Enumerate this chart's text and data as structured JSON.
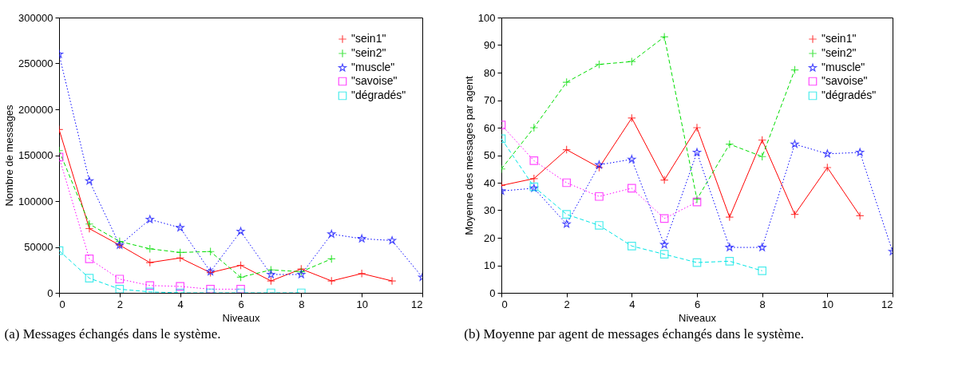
{
  "chart_data": [
    {
      "type": "line",
      "xlabel": "Niveaux",
      "ylabel": "Nombre de messages",
      "x": [
        0,
        1,
        2,
        3,
        4,
        5,
        6,
        7,
        8,
        9,
        10,
        11,
        12
      ],
      "xlim": [
        0,
        12
      ],
      "xticks": [
        0,
        2,
        4,
        6,
        8,
        10,
        12
      ],
      "ylim": [
        0,
        300000
      ],
      "yticks": [
        0,
        50000,
        100000,
        150000,
        200000,
        250000,
        300000
      ],
      "grid": false,
      "legend": "top right",
      "annotations": [
        "(a) Messages échangés dans le système."
      ],
      "series": [
        {
          "name": "\"sein1\"",
          "color": "#ff0000",
          "marker": "cross",
          "line_style": "solid",
          "values": [
            178000,
            70000,
            52000,
            33000,
            38000,
            22000,
            30000,
            13000,
            26000,
            13000,
            21000,
            13000,
            null
          ]
        },
        {
          "name": "\"sein2\"",
          "color": "#00dd00",
          "marker": "cross",
          "line_style": "dashed",
          "values": [
            155000,
            75000,
            56000,
            48000,
            44000,
            45000,
            17000,
            25000,
            23000,
            37000,
            null,
            null,
            null
          ]
        },
        {
          "name": "\"muscle\"",
          "color": "#0000ff",
          "marker": "star",
          "line_style": "dotted",
          "values": [
            260000,
            122000,
            52000,
            80000,
            71000,
            23000,
            67000,
            20000,
            20000,
            64000,
            59000,
            57000,
            17000
          ]
        },
        {
          "name": "\"savoise\"",
          "color": "#ff00ff",
          "marker": "square",
          "line_style": "dotted",
          "values": [
            148000,
            37000,
            15000,
            8000,
            7000,
            4000,
            4000,
            null,
            null,
            null,
            null,
            null,
            null
          ]
        },
        {
          "name": "\"dégradés\"",
          "color": "#00e5e5",
          "marker": "square",
          "line_style": "dashed",
          "values": [
            46000,
            16000,
            4000,
            1000,
            0,
            0,
            0,
            0,
            0,
            null,
            null,
            null,
            null
          ]
        }
      ]
    },
    {
      "type": "line",
      "xlabel": "Niveaux",
      "ylabel": "Moyenne des messages par agent",
      "x": [
        0,
        1,
        2,
        3,
        4,
        5,
        6,
        7,
        8,
        9,
        10,
        11,
        12
      ],
      "xlim": [
        0,
        12
      ],
      "xticks": [
        0,
        2,
        4,
        6,
        8,
        10,
        12
      ],
      "ylim": [
        0,
        100
      ],
      "yticks": [
        0,
        10,
        20,
        30,
        40,
        50,
        60,
        70,
        80,
        90,
        100
      ],
      "grid": false,
      "legend": "top right",
      "annotations": [
        "(b) Moyenne par agent de messages échangés dans le système."
      ],
      "series": [
        {
          "name": "\"sein1\"",
          "color": "#ff0000",
          "marker": "cross",
          "line_style": "solid",
          "values": [
            39,
            41.5,
            52,
            45.5,
            63.5,
            41,
            60,
            27.5,
            55.5,
            28.5,
            45.5,
            28,
            null
          ]
        },
        {
          "name": "\"sein2\"",
          "color": "#00dd00",
          "marker": "cross",
          "line_style": "dashed",
          "values": [
            45,
            60,
            76.5,
            83,
            84,
            93,
            34,
            54,
            49.5,
            81,
            null,
            null,
            null
          ]
        },
        {
          "name": "\"muscle\"",
          "color": "#0000ff",
          "marker": "star",
          "line_style": "dotted",
          "values": [
            37,
            38,
            25,
            46.5,
            48.5,
            17.5,
            51,
            16.5,
            16.5,
            54,
            50.5,
            51,
            15
          ]
        },
        {
          "name": "\"savoise\"",
          "color": "#ff00ff",
          "marker": "square",
          "line_style": "dotted",
          "values": [
            61,
            48,
            40,
            35,
            38,
            27,
            33,
            null,
            null,
            null,
            null,
            null,
            null
          ]
        },
        {
          "name": "\"dégradés\"",
          "color": "#00e5e5",
          "marker": "square",
          "line_style": "dashed",
          "values": [
            56,
            38.5,
            28.5,
            24.5,
            17,
            14,
            11,
            11.5,
            8,
            null,
            null,
            null,
            null
          ]
        }
      ]
    }
  ]
}
